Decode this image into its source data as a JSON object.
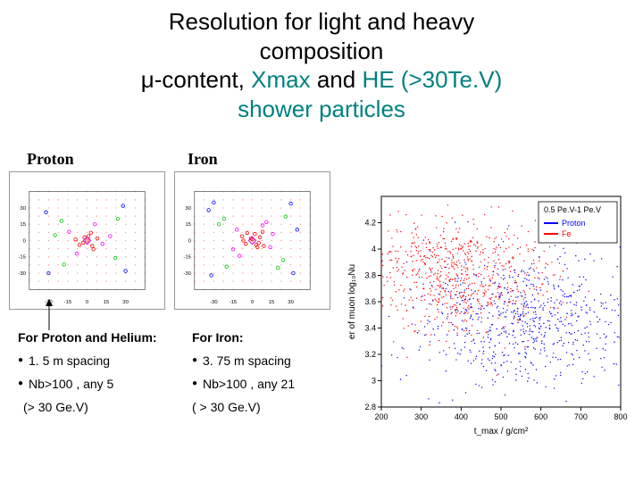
{
  "title": {
    "line1_a": "Resolution for light and heavy",
    "line1_b": "composition",
    "line2_mu": "μ",
    "line2_a": "-content, ",
    "line2_b": "Xmax",
    "line2_c": " and ",
    "line2_d": "HE (>30Te.V)",
    "line3": "shower particles"
  },
  "labels": {
    "proton": "Proton",
    "iron": "Iron"
  },
  "miniScatter": {
    "proton": {
      "xlim": [
        -45,
        45
      ],
      "ylim": [
        -45,
        45
      ],
      "grid_color": "#f08080",
      "grid_step": 7.5,
      "series": [
        {
          "color": "#ff0000",
          "points": [
            [
              -2,
              3
            ],
            [
              4,
              -5
            ],
            [
              0,
              0
            ],
            [
              8,
              2
            ],
            [
              -6,
              -4
            ],
            [
              3,
              7
            ],
            [
              -9,
              1
            ],
            [
              5,
              -8
            ],
            [
              1,
              4
            ],
            [
              -3,
              -2
            ]
          ]
        },
        {
          "color": "#ff00ff",
          "points": [
            [
              12,
              -3
            ],
            [
              -14,
              8
            ],
            [
              6,
              15
            ],
            [
              -8,
              -12
            ],
            [
              18,
              4
            ]
          ]
        },
        {
          "color": "#00cc00",
          "points": [
            [
              -20,
              18
            ],
            [
              22,
              -16
            ],
            [
              -18,
              -22
            ],
            [
              24,
              20
            ],
            [
              -25,
              5
            ]
          ]
        },
        {
          "color": "#0000ff",
          "points": [
            [
              30,
              -28
            ],
            [
              -32,
              26
            ],
            [
              28,
              32
            ],
            [
              -30,
              -30
            ]
          ]
        }
      ],
      "axis_ticks": [
        -30,
        -15,
        0,
        15,
        30
      ]
    },
    "iron": {
      "xlim": [
        -45,
        45
      ],
      "ylim": [
        -45,
        45
      ],
      "grid_color": "#f08080",
      "grid_step": 7.5,
      "series": [
        {
          "color": "#ff0000",
          "points": [
            [
              -1,
              2
            ],
            [
              3,
              -4
            ],
            [
              0,
              1
            ],
            [
              6,
              3
            ],
            [
              -5,
              -3
            ],
            [
              2,
              6
            ],
            [
              -7,
              0
            ],
            [
              4,
              -6
            ],
            [
              8,
              8
            ],
            [
              -8,
              4
            ],
            [
              5,
              -2
            ],
            [
              -4,
              7
            ],
            [
              9,
              -5
            ]
          ]
        },
        {
          "color": "#ff00ff",
          "points": [
            [
              14,
              -6
            ],
            [
              -12,
              10
            ],
            [
              8,
              14
            ],
            [
              -10,
              -14
            ],
            [
              16,
              6
            ],
            [
              -15,
              -8
            ],
            [
              11,
              17
            ]
          ]
        },
        {
          "color": "#00cc00",
          "points": [
            [
              -22,
              20
            ],
            [
              24,
              -18
            ],
            [
              -20,
              -24
            ],
            [
              26,
              22
            ],
            [
              20,
              -25
            ],
            [
              -26,
              15
            ]
          ]
        },
        {
          "color": "#0000ff",
          "points": [
            [
              32,
              -30
            ],
            [
              -34,
              28
            ],
            [
              30,
              34
            ],
            [
              -32,
              -32
            ],
            [
              35,
              10
            ],
            [
              -30,
              35
            ]
          ]
        }
      ],
      "axis_ticks": [
        -30,
        -15,
        0,
        15,
        30
      ]
    }
  },
  "bigChart": {
    "type": "scatter",
    "title": "0.5 Pe.V-1 Pe.V",
    "xlabel": "t_max / g/cm²",
    "ylabel": "er of muon log₁₀Nu",
    "xlim": [
      200,
      800
    ],
    "ylim": [
      2.8,
      4.4
    ],
    "xticks": [
      200,
      300,
      400,
      500,
      600,
      700,
      800
    ],
    "yticks": [
      2.8,
      3.0,
      3.2,
      3.4,
      3.6,
      3.8,
      4.0,
      4.2
    ],
    "background": "#ffffff",
    "axis_color": "#000000",
    "legend": [
      {
        "label": "Proton",
        "color": "#0000ff"
      },
      {
        "label": "Fe",
        "color": "#ff0000"
      }
    ],
    "series": {
      "proton": {
        "color": "#0000ff",
        "center": [
          560,
          3.45
        ],
        "spread": [
          140,
          0.25
        ],
        "n": 700
      },
      "fe": {
        "color": "#ff0000",
        "center": [
          390,
          3.8
        ],
        "spread": [
          110,
          0.22
        ],
        "n": 700
      }
    }
  },
  "bottomText": {
    "left": {
      "head": "For Proton and Helium:",
      "b1": "1. 5 m spacing",
      "b2": "Nb>100 , any 5",
      "sub": "(> 30 Ge.V)"
    },
    "right": {
      "head": "For Iron:",
      "b1": "3. 75 m spacing",
      "b2": "Nb>100 , any 21",
      "plain": "( > 30 Ge.V)"
    }
  }
}
